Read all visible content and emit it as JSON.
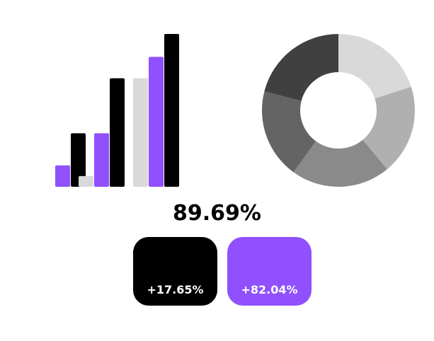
{
  "chart_data": [
    {
      "type": "bar",
      "title": "",
      "xlabel": "",
      "ylabel": "",
      "ylim": [
        0,
        100
      ],
      "categories": [
        "",
        "",
        ""
      ],
      "grid": false,
      "legend": "none",
      "series": [
        {
          "color": "#d9d9d9",
          "values": [
            0,
            7,
            71
          ]
        },
        {
          "color": "#9150fd",
          "values": [
            14,
            35,
            85
          ]
        },
        {
          "color": "#000000",
          "values": [
            35,
            71,
            100
          ]
        }
      ]
    },
    {
      "type": "pie",
      "donut": true,
      "title": "",
      "legend": "none",
      "values": [
        20,
        19,
        21,
        19,
        21
      ],
      "colors": [
        "#d9d9d9",
        "#b0b0b0",
        "#8a8a8a",
        "#646464",
        "#404040"
      ]
    }
  ],
  "summary": {
    "value": "89.69%"
  },
  "cards": [
    {
      "label": "+17.65%",
      "color": "#000000"
    },
    {
      "label": "+82.04%",
      "color": "#9150fd"
    }
  ]
}
